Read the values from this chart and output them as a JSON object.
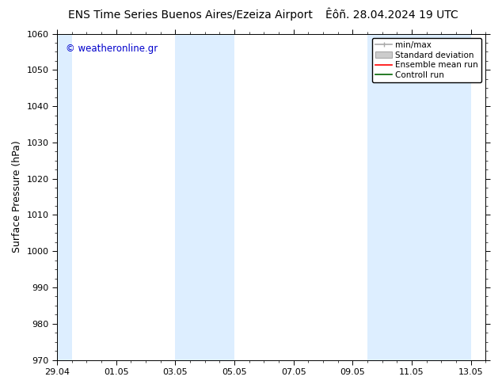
{
  "title_left": "ENS Time Series Buenos Aires/Ezeiza Airport",
  "title_right": "Êôñ. 28.04.2024 19 UTC",
  "ylabel": "Surface Pressure (hPa)",
  "ylim": [
    970,
    1060
  ],
  "yticks": [
    970,
    980,
    990,
    1000,
    1010,
    1020,
    1030,
    1040,
    1050,
    1060
  ],
  "xtick_labels": [
    "29.04",
    "01.05",
    "03.05",
    "05.05",
    "07.05",
    "09.05",
    "11.05",
    "13.05"
  ],
  "xtick_positions": [
    0,
    2,
    4,
    6,
    8,
    10,
    12,
    14
  ],
  "xlim": [
    0,
    14
  ],
  "watermark": "© weatheronline.gr",
  "watermark_color": "#0000cc",
  "bg_color": "#ffffff",
  "plot_bg_color": "#ffffff",
  "shaded_bands": [
    {
      "x_start": 0.0,
      "x_end": 0.5
    },
    {
      "x_start": 4.0,
      "x_end": 6.0
    },
    {
      "x_start": 10.5,
      "x_end": 14.0
    }
  ],
  "shaded_color": "#ddeeff",
  "legend_entries": [
    {
      "label": "min/max",
      "color": "#aaaaaa",
      "style": "errbar"
    },
    {
      "label": "Standard deviation",
      "color": "#cccccc",
      "style": "rect"
    },
    {
      "label": "Ensemble mean run",
      "color": "#ff0000",
      "style": "line"
    },
    {
      "label": "Controll run",
      "color": "#006400",
      "style": "line"
    }
  ],
  "title_fontsize": 10,
  "axis_fontsize": 9,
  "tick_fontsize": 8,
  "legend_fontsize": 7.5
}
